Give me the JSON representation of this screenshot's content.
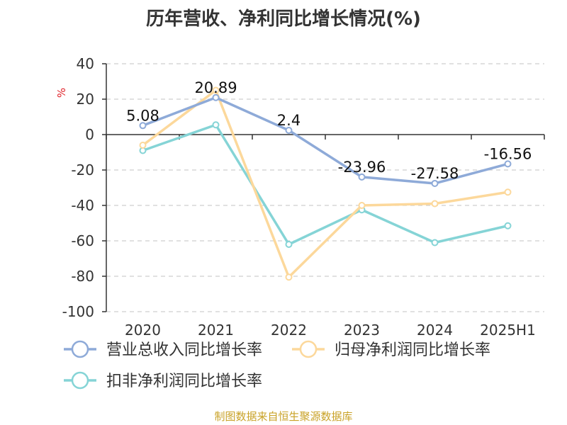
{
  "title": "历年营收、净利同比增长情况(%)",
  "source": "制图数据来自恒生聚源数据库",
  "chart_data": {
    "type": "line",
    "title": "历年营收、净利同比增长情况(%)",
    "xlabel": "",
    "ylabel": "%",
    "ylim": [
      -100,
      40
    ],
    "yticks": [
      40,
      20,
      0,
      -20,
      -40,
      -60,
      -80,
      -100
    ],
    "grid": true,
    "legend_position": "bottom",
    "categories": [
      "2020",
      "2021",
      "2022",
      "2023",
      "2024",
      "2025H1"
    ],
    "series": [
      {
        "name": "营业总收入同比增长率",
        "color": "#8eaad8",
        "values": [
          5.08,
          20.89,
          2.4,
          -23.96,
          -27.58,
          -16.56
        ],
        "labels": [
          "5.08",
          "20.89",
          "2.4",
          "-23.96",
          "-27.58",
          "-16.56"
        ]
      },
      {
        "name": "归母净利润同比增长率",
        "color": "#fcd89b",
        "values": [
          -6,
          25,
          -80.5,
          -40,
          -39,
          -32.5
        ]
      },
      {
        "name": "扣非净利润同比增长率",
        "color": "#85d4d6",
        "values": [
          -9,
          5.5,
          -62,
          -42.5,
          -61,
          -51.5
        ]
      }
    ]
  }
}
